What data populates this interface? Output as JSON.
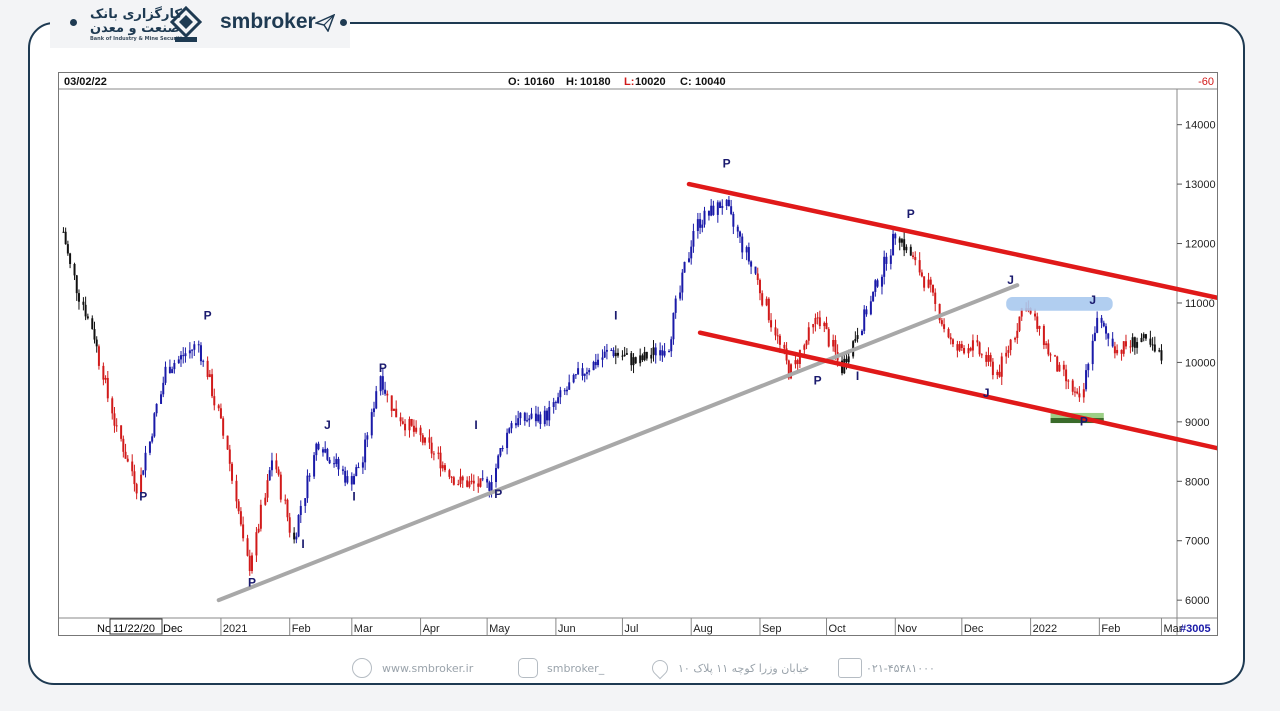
{
  "brand": {
    "name": "smbroker",
    "logo_fa_line1": "کارگزاری بانک",
    "logo_fa_line2": "صنعت و معدن",
    "logo_en": "Bank of Industry & Mine Securities"
  },
  "header": {
    "date": "03/02/22",
    "open_label": "O:",
    "open": "10160",
    "high_label": "H:",
    "high": "10180",
    "low_label": "L:",
    "low": "10020",
    "close_label": "C:",
    "close": "10040",
    "right_value": "-60"
  },
  "xaxis": {
    "date_box": "11/22/20",
    "labels": [
      "No",
      "Dec",
      "2021",
      "Feb",
      "Mar",
      "Apr",
      "May",
      "Jun",
      "Jul",
      "Aug",
      "Sep",
      "Oct",
      "Nov",
      "Dec",
      "2022",
      "Feb",
      "Mar"
    ],
    "bar_count": "#3005"
  },
  "footer": {
    "website": "www.smbroker.ir",
    "instagram": "smbroker_",
    "address": "خیابان وزرا کوچه ۱۱ پلاک ۱۰",
    "phone": "۰۲۱-۴۵۴۸۱۰۰۰"
  },
  "colors": {
    "up": "#1a1aa8",
    "down": "#d11a1a",
    "neutral": "#111111",
    "channel": "#e01919",
    "trend": "#a8a8a8",
    "resist": "#a9c9ee",
    "support": "#3a6b2a",
    "frame": "#1e3a52"
  },
  "chart_data": {
    "type": "candlestick",
    "ylim": [
      5700,
      14600
    ],
    "yticks": [
      6000,
      7000,
      8000,
      9000,
      10000,
      11000,
      12000,
      13000,
      14000
    ],
    "x_range": [
      "2020-10-20",
      "2022-03-08"
    ],
    "month_ticks": [
      {
        "label": "2021",
        "date": "2021-01-01"
      },
      {
        "label": "Feb",
        "date": "2021-02-01"
      },
      {
        "label": "Mar",
        "date": "2021-03-01"
      },
      {
        "label": "Apr",
        "date": "2021-04-01"
      },
      {
        "label": "May",
        "date": "2021-05-01"
      },
      {
        "label": "Jun",
        "date": "2021-06-01"
      },
      {
        "label": "Jul",
        "date": "2021-07-01"
      },
      {
        "label": "Aug",
        "date": "2021-08-01"
      },
      {
        "label": "Sep",
        "date": "2021-09-01"
      },
      {
        "label": "Oct",
        "date": "2021-10-01"
      },
      {
        "label": "Nov",
        "date": "2021-11-01"
      },
      {
        "label": "Dec",
        "date": "2021-12-01"
      },
      {
        "label": "2022",
        "date": "2022-01-01"
      },
      {
        "label": "Feb",
        "date": "2022-02-01"
      },
      {
        "label": "Mar",
        "date": "2022-03-01"
      }
    ],
    "price_path": [
      [
        "2020-10-22",
        12200
      ],
      [
        "2020-10-28",
        11300
      ],
      [
        "2020-11-05",
        10500
      ],
      [
        "2020-11-15",
        8900
      ],
      [
        "2020-11-25",
        7900
      ],
      [
        "2020-12-08",
        9900
      ],
      [
        "2020-12-22",
        10300
      ],
      [
        "2020-12-28",
        9600
      ],
      [
        "2021-01-04",
        8600
      ],
      [
        "2021-01-14",
        6500
      ],
      [
        "2021-01-25",
        8400
      ],
      [
        "2021-02-03",
        7000
      ],
      [
        "2021-02-14",
        8700
      ],
      [
        "2021-02-28",
        8000
      ],
      [
        "2021-03-06",
        8300
      ],
      [
        "2021-03-14",
        9800
      ],
      [
        "2021-03-20",
        9200
      ],
      [
        "2021-04-02",
        8700
      ],
      [
        "2021-04-18",
        8000
      ],
      [
        "2021-05-02",
        7900
      ],
      [
        "2021-05-12",
        9000
      ],
      [
        "2021-05-28",
        9100
      ],
      [
        "2021-06-12",
        9800
      ],
      [
        "2021-06-26",
        10200
      ],
      [
        "2021-07-08",
        10000
      ],
      [
        "2021-07-22",
        10300
      ],
      [
        "2021-08-03",
        12300
      ],
      [
        "2021-08-16",
        12700
      ],
      [
        "2021-08-30",
        11500
      ],
      [
        "2021-09-15",
        9800
      ],
      [
        "2021-09-28",
        10800
      ],
      [
        "2021-10-08",
        9900
      ],
      [
        "2021-10-20",
        10900
      ],
      [
        "2021-11-02",
        12200
      ],
      [
        "2021-11-16",
        11300
      ],
      [
        "2021-11-28",
        10200
      ],
      [
        "2021-12-06",
        10300
      ],
      [
        "2021-12-18",
        9800
      ],
      [
        "2021-12-30",
        11000
      ],
      [
        "2022-01-12",
        10000
      ],
      [
        "2022-01-24",
        9300
      ],
      [
        "2022-01-31",
        10700
      ],
      [
        "2022-02-10",
        10200
      ],
      [
        "2022-02-20",
        10400
      ],
      [
        "2022-03-02",
        10040
      ]
    ],
    "pattern_labels": [
      {
        "text": "P",
        "date": "2020-11-27",
        "price": 7680
      },
      {
        "text": "P",
        "date": "2020-12-26",
        "price": 10720
      },
      {
        "text": "P",
        "date": "2021-01-15",
        "price": 6230
      },
      {
        "text": "I",
        "date": "2021-02-07",
        "price": 6880
      },
      {
        "text": "J",
        "date": "2021-02-18",
        "price": 8880
      },
      {
        "text": "I",
        "date": "2021-03-02",
        "price": 7680
      },
      {
        "text": "P",
        "date": "2021-03-15",
        "price": 9840
      },
      {
        "text": "I",
        "date": "2021-04-26",
        "price": 8880
      },
      {
        "text": "P",
        "date": "2021-05-06",
        "price": 7720
      },
      {
        "text": "I",
        "date": "2021-06-28",
        "price": 10720
      },
      {
        "text": "P",
        "date": "2021-08-17",
        "price": 13280
      },
      {
        "text": "P",
        "date": "2021-09-27",
        "price": 9630
      },
      {
        "text": "I",
        "date": "2021-10-15",
        "price": 9700
      },
      {
        "text": "P",
        "date": "2021-11-08",
        "price": 12430
      },
      {
        "text": "J",
        "date": "2021-12-12",
        "price": 9420
      },
      {
        "text": "J",
        "date": "2021-12-23",
        "price": 11320
      },
      {
        "text": "J",
        "date": "2022-01-29",
        "price": 10980
      },
      {
        "text": "P",
        "date": "2022-01-25",
        "price": 8940
      }
    ],
    "trendlines": [
      {
        "kind": "rising-support",
        "color": "gray",
        "from": [
          "2020-12-31",
          6000
        ],
        "to": [
          "2021-12-26",
          11300
        ]
      },
      {
        "kind": "channel-upper",
        "color": "red",
        "from": [
          "2021-07-31",
          13000
        ],
        "to": [
          "2022-03-31",
          11050
        ]
      },
      {
        "kind": "channel-lower",
        "color": "red",
        "from": [
          "2021-08-05",
          10500
        ],
        "to": [
          "2022-04-02",
          8500
        ]
      }
    ],
    "zones": [
      {
        "kind": "resistance",
        "from": [
          "2021-12-21",
          11100
        ],
        "to": [
          "2022-02-07",
          10870
        ]
      },
      {
        "kind": "support",
        "from": [
          "2022-01-10",
          9150
        ],
        "to": [
          "2022-02-03",
          8980
        ]
      }
    ]
  }
}
